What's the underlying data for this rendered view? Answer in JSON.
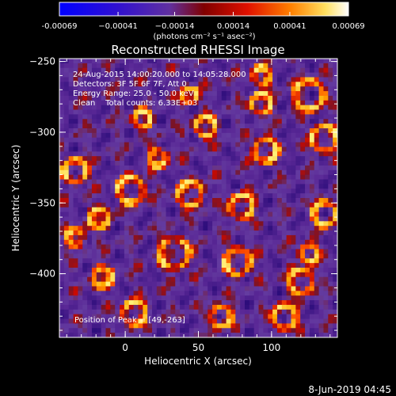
{
  "chart_data": {
    "type": "heatmap",
    "title": "Reconstructed RHESSI Image",
    "xlabel": "Heliocentric X (arcsec)",
    "ylabel": "Heliocentric Y (arcsec)",
    "xlim": [
      -45,
      145
    ],
    "ylim": [
      -445,
      -248
    ],
    "x_ticks": [
      0,
      50,
      100
    ],
    "y_ticks": [
      -250,
      -300,
      -350,
      -400
    ],
    "colorbar": {
      "min": -0.00069,
      "max": 0.00069,
      "tick_values": [
        -0.00069,
        -0.00041,
        -0.00014,
        0.00014,
        0.00041,
        0.00069
      ],
      "tick_labels": [
        "-0.00069",
        "−0.00041",
        "−0.00014",
        "0.00014",
        "0.00041",
        "0.00069"
      ],
      "unit_label": "(photons cm⁻² s⁻¹ asec⁻²)"
    },
    "annotations": [
      "24-Aug-2015 14:00:20.000 to 14:05:28.000",
      "Detectors: 3F 5F 6F 7F, Att 0",
      "Energy Range: 25.0 - 50.0 keV",
      "Clean    Total counts: 6.33E+03"
    ],
    "peak_label": "Position of Peak = [49,-263]",
    "grid": false,
    "legend": "none"
  },
  "footer": {
    "date": "8-Jun-2019 04:45"
  }
}
